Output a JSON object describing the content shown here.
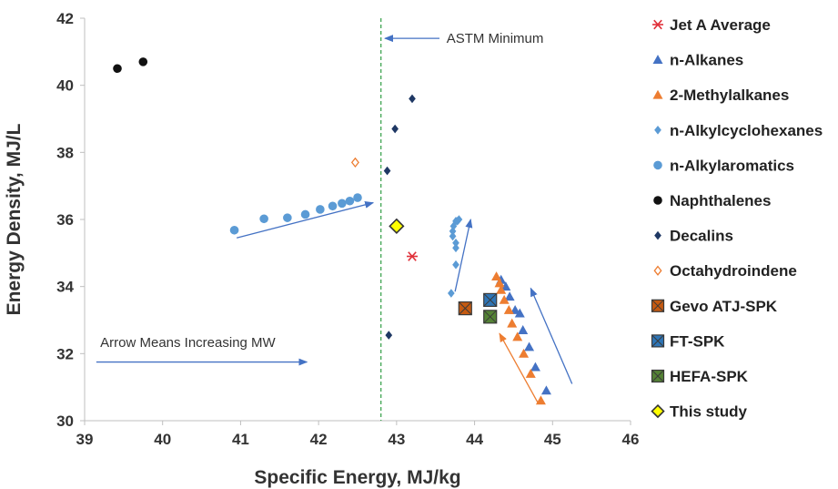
{
  "chart_data": {
    "type": "scatter",
    "xlabel": "Specific Energy, MJ/kg",
    "ylabel": "Energy Density, MJ/L",
    "xlim": [
      39,
      46
    ],
    "ylim": [
      30,
      42
    ],
    "xticks": [
      "39",
      "40",
      "41",
      "42",
      "43",
      "44",
      "45",
      "46"
    ],
    "yticks": [
      "30",
      "32",
      "34",
      "36",
      "38",
      "40",
      "42"
    ],
    "grid": false,
    "legend_placement": "right",
    "series": [
      {
        "name": "Jet A Average",
        "marker": "asterisk",
        "color": "#e0303a",
        "points": [
          [
            43.2,
            34.9
          ]
        ]
      },
      {
        "name": "n-Alkanes",
        "marker": "triangle",
        "color": "#4472c4",
        "points": [
          [
            44.34,
            34.2
          ],
          [
            44.4,
            34.0
          ],
          [
            44.45,
            33.7
          ],
          [
            44.52,
            33.3
          ],
          [
            44.58,
            33.2
          ],
          [
            44.62,
            32.7
          ],
          [
            44.7,
            32.2
          ],
          [
            44.78,
            31.6
          ],
          [
            44.92,
            30.9
          ]
        ]
      },
      {
        "name": "2-Methylalkanes",
        "marker": "triangle",
        "color": "#ed7d31",
        "points": [
          [
            44.28,
            34.3
          ],
          [
            44.32,
            34.1
          ],
          [
            44.34,
            33.9
          ],
          [
            44.38,
            33.6
          ],
          [
            44.44,
            33.3
          ],
          [
            44.48,
            32.9
          ],
          [
            44.55,
            32.5
          ],
          [
            44.63,
            32.0
          ],
          [
            44.72,
            31.4
          ],
          [
            44.85,
            30.6
          ]
        ]
      },
      {
        "name": "n-Alkylcyclohexanes",
        "marker": "diamond",
        "color": "#5b9bd5",
        "points": [
          [
            43.7,
            33.8
          ],
          [
            43.76,
            34.65
          ],
          [
            43.76,
            35.15
          ],
          [
            43.76,
            35.3
          ],
          [
            43.72,
            35.5
          ],
          [
            43.72,
            35.65
          ],
          [
            43.73,
            35.8
          ],
          [
            43.76,
            35.95
          ],
          [
            43.78,
            35.95
          ],
          [
            43.8,
            36.0
          ]
        ]
      },
      {
        "name": "n-Alkylaromatics",
        "marker": "circle",
        "color": "#5b9bd5",
        "points": [
          [
            40.92,
            35.68
          ],
          [
            41.3,
            36.02
          ],
          [
            41.6,
            36.05
          ],
          [
            41.83,
            36.15
          ],
          [
            42.02,
            36.3
          ],
          [
            42.18,
            36.4
          ],
          [
            42.3,
            36.48
          ],
          [
            42.4,
            36.55
          ],
          [
            42.5,
            36.65
          ]
        ]
      },
      {
        "name": "Naphthalenes",
        "marker": "circle",
        "color": "#111111",
        "points": [
          [
            39.42,
            40.5
          ],
          [
            39.75,
            40.7
          ]
        ]
      },
      {
        "name": "Decalins",
        "marker": "diamond",
        "color": "#1f3864",
        "points": [
          [
            43.2,
            39.6
          ],
          [
            42.98,
            38.7
          ],
          [
            42.88,
            37.45
          ],
          [
            42.9,
            32.55
          ]
        ]
      },
      {
        "name": "Octahydroindene",
        "marker": "diamond-open",
        "color": "#ed7d31",
        "points": [
          [
            42.47,
            37.7
          ]
        ]
      },
      {
        "name": "Gevo ATJ-SPK",
        "marker": "square-x",
        "color": "#c55a11",
        "points": [
          [
            43.88,
            33.35
          ]
        ]
      },
      {
        "name": "FT-SPK",
        "marker": "square-x",
        "color": "#2e75b6",
        "points": [
          [
            44.2,
            33.6
          ]
        ]
      },
      {
        "name": "HEFA-SPK",
        "marker": "square-x",
        "color": "#548235",
        "points": [
          [
            44.2,
            33.1
          ]
        ]
      },
      {
        "name": "This study",
        "marker": "diamond-yellow",
        "color": "#ffff00",
        "points": [
          [
            43.0,
            35.8
          ]
        ]
      }
    ],
    "reference_lines": [
      {
        "label": "ASTM Minimum",
        "axis": "x",
        "value": 42.8,
        "style": "dashed",
        "color": "#2f9e44"
      }
    ],
    "annotations": [
      {
        "text": "ASTM Minimum"
      },
      {
        "text": "Arrow Means Increasing MW"
      }
    ],
    "arrows": [
      {
        "from": [
          40.95,
          35.45
        ],
        "to": [
          42.7,
          36.5
        ],
        "color": "#4472c4"
      },
      {
        "from": [
          43.75,
          33.85
        ],
        "to": [
          43.95,
          36.0
        ],
        "color": "#4472c4"
      },
      {
        "from": [
          44.82,
          30.5
        ],
        "to": [
          44.32,
          32.6
        ],
        "color": "#ed7d31"
      },
      {
        "from": [
          45.25,
          31.1
        ],
        "to": [
          44.72,
          33.95
        ],
        "color": "#4472c4"
      },
      {
        "from": [
          39.15,
          31.75
        ],
        "to": [
          41.85,
          31.75
        ],
        "color": "#4472c4"
      },
      {
        "from": [
          43.55,
          41.4
        ],
        "to": [
          42.85,
          41.4
        ],
        "color": "#4472c4"
      }
    ]
  }
}
